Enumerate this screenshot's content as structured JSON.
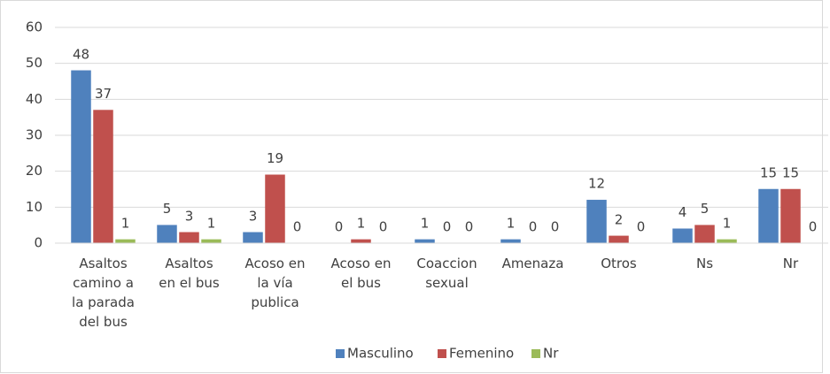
{
  "chart_data": {
    "type": "bar",
    "categories": [
      "Asaltos camino a la parada del bus",
      "Asaltos en el bus",
      "Acoso en la vía publica",
      "Acoso en el bus",
      "Coaccion sexual",
      "Amenaza",
      "Otros",
      "Ns",
      "Nr"
    ],
    "series": [
      {
        "name": "Masculino",
        "color": "#4f81bd",
        "values": [
          48,
          5,
          3,
          0,
          1,
          1,
          12,
          4,
          15
        ]
      },
      {
        "name": "Femenino",
        "color": "#c0504d",
        "values": [
          37,
          3,
          19,
          1,
          0,
          0,
          2,
          5,
          15
        ]
      },
      {
        "name": "Nr",
        "color": "#9bbb59",
        "values": [
          1,
          1,
          0,
          0,
          0,
          0,
          0,
          1,
          0
        ]
      }
    ],
    "ylim": [
      0,
      60
    ],
    "yticks": [
      0,
      10,
      20,
      30,
      40,
      50,
      60
    ],
    "grid": true,
    "legend": "bottom"
  }
}
